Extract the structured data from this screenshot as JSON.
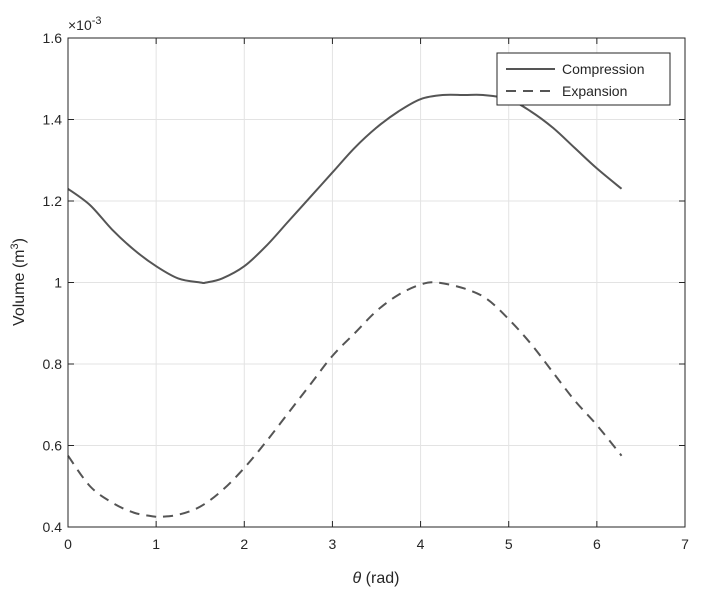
{
  "chart_data": {
    "type": "line",
    "title": "",
    "xlabel_symbol": "θ",
    "xlabel_unit": " (rad)",
    "ylabel_text": "Volume (m",
    "ylabel_exp": "3",
    "ylabel_close": ")",
    "exponent_base": "×10",
    "exponent_power": "-3",
    "xlim": [
      0,
      7
    ],
    "ylim": [
      0.4,
      1.6
    ],
    "xticks": [
      0,
      1,
      2,
      3,
      4,
      5,
      6,
      7
    ],
    "xtick_labels": [
      "0",
      "1",
      "2",
      "3",
      "4",
      "5",
      "6",
      "7"
    ],
    "yticks": [
      0.4,
      0.6,
      0.8,
      1.0,
      1.2,
      1.4,
      1.6
    ],
    "ytick_labels": [
      "0.4",
      "0.6",
      "0.8",
      "1",
      "1.2",
      "1.4",
      "1.6"
    ],
    "grid": true,
    "legend_position": "top-right",
    "series": [
      {
        "name": "Compression",
        "style": "solid",
        "color": "#555555",
        "x": [
          0,
          0.25,
          0.5,
          0.75,
          1.0,
          1.25,
          1.5,
          1.57,
          1.75,
          2.0,
          2.25,
          2.5,
          2.75,
          3.0,
          3.25,
          3.5,
          3.75,
          4.0,
          4.25,
          4.5,
          4.71,
          5.0,
          5.25,
          5.5,
          5.75,
          6.0,
          6.28
        ],
        "values": [
          1.23,
          1.19,
          1.13,
          1.08,
          1.04,
          1.01,
          1.0,
          1.0,
          1.01,
          1.04,
          1.09,
          1.15,
          1.21,
          1.27,
          1.33,
          1.38,
          1.42,
          1.45,
          1.46,
          1.46,
          1.46,
          1.45,
          1.42,
          1.38,
          1.33,
          1.28,
          1.23
        ]
      },
      {
        "name": "Expansion",
        "style": "dashed",
        "color": "#555555",
        "x": [
          0,
          0.25,
          0.5,
          0.75,
          1.0,
          1.05,
          1.25,
          1.5,
          1.75,
          2.0,
          2.25,
          2.5,
          2.75,
          3.0,
          3.25,
          3.5,
          3.75,
          4.0,
          4.19,
          4.5,
          4.75,
          5.0,
          5.25,
          5.5,
          5.75,
          6.0,
          6.28
        ],
        "values": [
          0.575,
          0.5,
          0.46,
          0.435,
          0.425,
          0.425,
          0.43,
          0.45,
          0.49,
          0.545,
          0.61,
          0.68,
          0.75,
          0.82,
          0.875,
          0.93,
          0.97,
          0.995,
          1.0,
          0.985,
          0.96,
          0.91,
          0.85,
          0.78,
          0.71,
          0.65,
          0.575
        ]
      }
    ]
  }
}
